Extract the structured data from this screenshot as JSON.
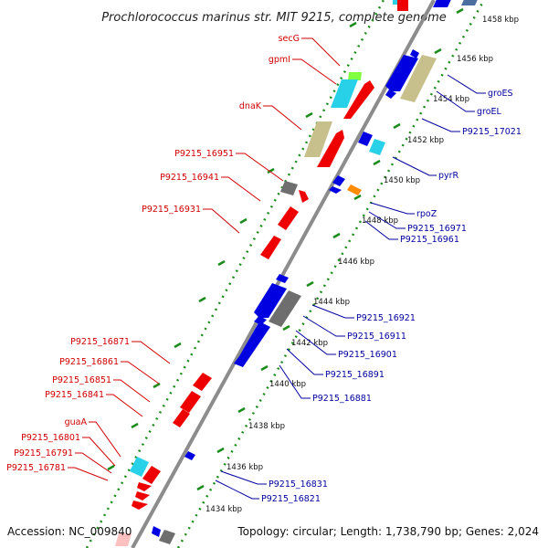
{
  "title": "Prochlorococcus marinus str. MIT 9215, complete genome",
  "accession": "Accession: NC_009840",
  "topology": "Topology: circular; Length: 1,738,790 bp; Genes: 2,024",
  "colors": {
    "forward_label": "#d10000",
    "reverse_label": "#00009e",
    "backbone": "#8c8c8c",
    "ruler_dots": "#1a8c1a",
    "gene_red": "#ee0000",
    "gene_blue": "#0000e0",
    "gene_khaki": "#c8c08c",
    "gene_cyan": "#28d0e8",
    "gene_gray": "#6e6e6e",
    "gene_orange": "#ff8c00",
    "gene_lime": "#80ff40",
    "gene_pink": "#ffc0c0",
    "gene_steel": "#4a6ea0"
  },
  "scale": [
    {
      "label": "1458 kbp"
    },
    {
      "label": "1456 kbp"
    },
    {
      "label": "1454 kbp"
    },
    {
      "label": "1452 kbp"
    },
    {
      "label": "1450 kbp"
    },
    {
      "label": "1448 kbp"
    },
    {
      "label": "1446 kbp"
    },
    {
      "label": "1444 kbp"
    },
    {
      "label": "1442 kbp"
    },
    {
      "label": "1440 kbp"
    },
    {
      "label": "1438 kbp"
    },
    {
      "label": "1436 kbp"
    },
    {
      "label": "1434 kbp"
    }
  ],
  "forward_labels": [
    {
      "text": "secG"
    },
    {
      "text": "gpmI"
    },
    {
      "text": "dnaK"
    },
    {
      "text": "P9215_16951"
    },
    {
      "text": "P9215_16941"
    },
    {
      "text": "P9215_16931"
    },
    {
      "text": "P9215_16871"
    },
    {
      "text": "P9215_16861"
    },
    {
      "text": "P9215_16851"
    },
    {
      "text": "P9215_16841"
    },
    {
      "text": "guaA"
    },
    {
      "text": "P9215_16801"
    },
    {
      "text": "P9215_16791"
    },
    {
      "text": "P9215_16781"
    }
  ],
  "reverse_labels": [
    {
      "text": "groES"
    },
    {
      "text": "groEL"
    },
    {
      "text": "P9215_17021"
    },
    {
      "text": "pyrR"
    },
    {
      "text": "rpoZ"
    },
    {
      "text": "P9215_16971"
    },
    {
      "text": "P9215_16961"
    },
    {
      "text": "P9215_16921"
    },
    {
      "text": "P9215_16911"
    },
    {
      "text": "P9215_16901"
    },
    {
      "text": "P9215_16891"
    },
    {
      "text": "P9215_16881"
    },
    {
      "text": "P9215_16831"
    },
    {
      "text": "P9215_16821"
    }
  ]
}
